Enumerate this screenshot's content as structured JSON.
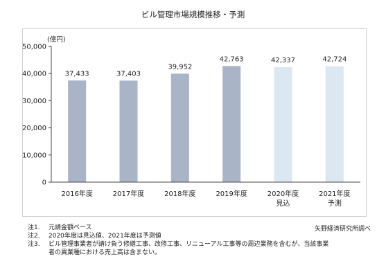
{
  "chart_data": {
    "type": "bar",
    "title": "ビル管理市場規模推移・予測",
    "unit_label": "(億円)",
    "categories": [
      "2016年度",
      "2017年度",
      "2018年度",
      "2019年度",
      "2020年度",
      "2021年度"
    ],
    "category_sublabels": [
      "",
      "",
      "",
      "",
      "見込",
      "予測"
    ],
    "values": [
      37433,
      37403,
      39952,
      42763,
      42337,
      42724
    ],
    "value_labels": [
      "37,433",
      "37,403",
      "39,952",
      "42,763",
      "42,337",
      "42,724"
    ],
    "y_ticks": [
      "0",
      "10,000",
      "20,000",
      "30,000",
      "40,000",
      "50,000"
    ],
    "ylim": [
      0,
      50000
    ],
    "grid": false,
    "colors": {
      "actual": "#a9b4c6",
      "estimate": "#dce8f1"
    }
  },
  "notes": [
    {
      "num": "注1.",
      "text": "元請金額ベース"
    },
    {
      "num": "注2.",
      "text": "2020年度は見込値、2021年度は予測値"
    },
    {
      "num": "注3.",
      "text": "ビル管理事業者が請け負う修繕工事、改修工事、リニューアル工事等の周辺業務を含むが、当該事業"
    },
    {
      "num": "",
      "text": "者の異業種における売上高は含まない。"
    }
  ],
  "source": "矢野経済研究所調べ"
}
